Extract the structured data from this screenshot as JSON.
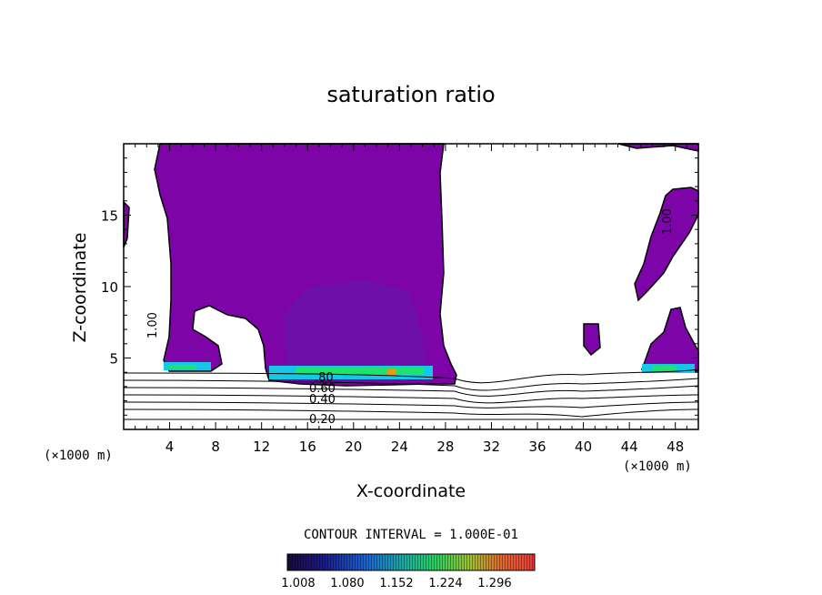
{
  "chart_data": {
    "type": "contour",
    "title": "saturation ratio",
    "xlabel": "X-coordinate",
    "ylabel": "Z-coordinate",
    "x_unit": "(×1000 m)",
    "z_unit": "(×1000 m)",
    "xlim": [
      0,
      50
    ],
    "ylim": [
      0,
      20
    ],
    "x_ticks": [
      "4",
      "8",
      "12",
      "16",
      "20",
      "24",
      "28",
      "32",
      "36",
      "40",
      "44",
      "48"
    ],
    "y_ticks": [
      "5",
      "10",
      "15"
    ],
    "contour_interval_text": "CONTOUR INTERVAL = 1.000E-01",
    "colorbar_ticks": [
      "1.008",
      "1.080",
      "1.152",
      "1.224",
      "1.296"
    ],
    "contour_labels": [
      "1.00",
      "1.00",
      ".80",
      "0.60",
      "0.40",
      "0.20"
    ],
    "colors": {
      "fill_base": "#7d05a8",
      "fill_dark": "#6a12a8",
      "cyan": "#14c8e6",
      "green": "#1ee36e",
      "orange": "#e69a14"
    }
  }
}
